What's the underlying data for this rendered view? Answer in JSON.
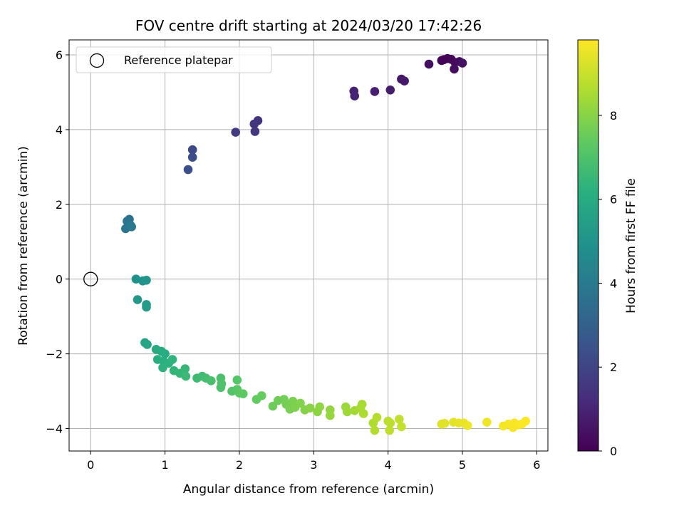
{
  "chart_data": {
    "type": "scatter",
    "title": "FOV centre drift starting at 2024/03/20 17:42:26",
    "xlabel": "Angular distance from reference (arcmin)",
    "ylabel": "Rotation from reference (arcmin)",
    "xlim": [
      -0.29,
      6.15
    ],
    "ylim": [
      -4.6,
      6.4
    ],
    "xticks": [
      0,
      1,
      2,
      3,
      4,
      5,
      6
    ],
    "yticks": [
      -4,
      -2,
      0,
      2,
      4,
      6
    ],
    "xtick_labels": [
      "0",
      "1",
      "2",
      "3",
      "4",
      "5",
      "6"
    ],
    "ytick_labels": [
      "−4",
      "−2",
      "0",
      "2",
      "4",
      "6"
    ],
    "grid": true,
    "legend": {
      "position": "top-left",
      "entries": [
        "Reference platepar"
      ]
    },
    "reference_point": {
      "x": 0,
      "y": 0,
      "marker": "open-circle"
    },
    "colorbar": {
      "label": "Hours from first FF file",
      "range": [
        0,
        9.8
      ],
      "ticks": [
        0,
        2,
        4,
        6,
        8
      ],
      "tick_labels": [
        "0",
        "2",
        "4",
        "6",
        "8"
      ],
      "colormap": "viridis"
    },
    "points": [
      {
        "x": 4.8,
        "y": 5.9,
        "c": 0.1
      },
      {
        "x": 4.85,
        "y": 5.88,
        "c": 0.15
      },
      {
        "x": 4.72,
        "y": 5.85,
        "c": 0.2
      },
      {
        "x": 4.9,
        "y": 5.8,
        "c": 0.25
      },
      {
        "x": 4.96,
        "y": 5.82,
        "c": 0.3
      },
      {
        "x": 4.75,
        "y": 5.87,
        "c": 0.05
      },
      {
        "x": 4.55,
        "y": 5.75,
        "c": 0.35
      },
      {
        "x": 4.89,
        "y": 5.62,
        "c": 0.4
      },
      {
        "x": 5.0,
        "y": 5.78,
        "c": 0.45
      },
      {
        "x": 4.18,
        "y": 5.35,
        "c": 0.6
      },
      {
        "x": 4.22,
        "y": 5.3,
        "c": 0.65
      },
      {
        "x": 4.03,
        "y": 5.06,
        "c": 0.75
      },
      {
        "x": 3.82,
        "y": 5.02,
        "c": 0.85
      },
      {
        "x": 3.54,
        "y": 5.03,
        "c": 0.95
      },
      {
        "x": 3.55,
        "y": 4.9,
        "c": 1.0
      },
      {
        "x": 2.25,
        "y": 4.24,
        "c": 1.4
      },
      {
        "x": 2.2,
        "y": 4.15,
        "c": 1.5
      },
      {
        "x": 2.21,
        "y": 3.95,
        "c": 1.55
      },
      {
        "x": 1.95,
        "y": 3.93,
        "c": 1.7
      },
      {
        "x": 1.37,
        "y": 3.46,
        "c": 2.2
      },
      {
        "x": 1.37,
        "y": 3.26,
        "c": 2.3
      },
      {
        "x": 1.31,
        "y": 2.93,
        "c": 2.4
      },
      {
        "x": 0.52,
        "y": 1.6,
        "c": 3.6
      },
      {
        "x": 0.49,
        "y": 1.55,
        "c": 3.7
      },
      {
        "x": 0.47,
        "y": 1.35,
        "c": 3.8
      },
      {
        "x": 0.54,
        "y": 1.43,
        "c": 3.9
      },
      {
        "x": 0.55,
        "y": 1.4,
        "c": 3.95
      },
      {
        "x": 0.61,
        "y": 0.0,
        "c": 4.9
      },
      {
        "x": 0.7,
        "y": -0.05,
        "c": 5.0
      },
      {
        "x": 0.75,
        "y": -0.03,
        "c": 5.05
      },
      {
        "x": 0.63,
        "y": -0.55,
        "c": 5.2
      },
      {
        "x": 0.75,
        "y": -0.68,
        "c": 5.3
      },
      {
        "x": 0.75,
        "y": -0.75,
        "c": 5.35
      },
      {
        "x": 0.73,
        "y": -1.7,
        "c": 5.7
      },
      {
        "x": 0.76,
        "y": -1.75,
        "c": 5.75
      },
      {
        "x": 0.88,
        "y": -1.88,
        "c": 5.9
      },
      {
        "x": 0.95,
        "y": -1.93,
        "c": 6.0
      },
      {
        "x": 1.0,
        "y": -2.0,
        "c": 6.05
      },
      {
        "x": 0.9,
        "y": -2.15,
        "c": 6.1
      },
      {
        "x": 0.98,
        "y": -2.2,
        "c": 6.15
      },
      {
        "x": 1.05,
        "y": -2.25,
        "c": 6.2
      },
      {
        "x": 0.97,
        "y": -2.37,
        "c": 6.25
      },
      {
        "x": 1.1,
        "y": -2.15,
        "c": 6.3
      },
      {
        "x": 1.12,
        "y": -2.45,
        "c": 6.4
      },
      {
        "x": 1.2,
        "y": -2.52,
        "c": 6.45
      },
      {
        "x": 1.27,
        "y": -2.4,
        "c": 6.5
      },
      {
        "x": 1.28,
        "y": -2.6,
        "c": 6.55
      },
      {
        "x": 1.43,
        "y": -2.65,
        "c": 6.65
      },
      {
        "x": 1.5,
        "y": -2.6,
        "c": 6.7
      },
      {
        "x": 1.55,
        "y": -2.65,
        "c": 6.75
      },
      {
        "x": 1.62,
        "y": -2.72,
        "c": 6.85
      },
      {
        "x": 1.75,
        "y": -2.65,
        "c": 6.9
      },
      {
        "x": 1.75,
        "y": -2.9,
        "c": 6.95
      },
      {
        "x": 1.76,
        "y": -2.8,
        "c": 7.0
      },
      {
        "x": 1.9,
        "y": -3.0,
        "c": 7.1
      },
      {
        "x": 1.97,
        "y": -2.7,
        "c": 7.15
      },
      {
        "x": 1.97,
        "y": -2.95,
        "c": 7.2
      },
      {
        "x": 2.0,
        "y": -3.05,
        "c": 7.25
      },
      {
        "x": 2.05,
        "y": -3.07,
        "c": 7.3
      },
      {
        "x": 2.23,
        "y": -3.22,
        "c": 7.4
      },
      {
        "x": 2.3,
        "y": -3.12,
        "c": 7.45
      },
      {
        "x": 2.45,
        "y": -3.4,
        "c": 7.55
      },
      {
        "x": 2.52,
        "y": -3.25,
        "c": 7.6
      },
      {
        "x": 2.6,
        "y": -3.22,
        "c": 7.65
      },
      {
        "x": 2.63,
        "y": -3.35,
        "c": 7.7
      },
      {
        "x": 2.68,
        "y": -3.48,
        "c": 7.75
      },
      {
        "x": 2.72,
        "y": -3.27,
        "c": 7.8
      },
      {
        "x": 2.75,
        "y": -3.43,
        "c": 7.85
      },
      {
        "x": 2.82,
        "y": -3.32,
        "c": 7.9
      },
      {
        "x": 2.88,
        "y": -3.5,
        "c": 7.95
      },
      {
        "x": 2.95,
        "y": -3.45,
        "c": 8.0
      },
      {
        "x": 3.05,
        "y": -3.55,
        "c": 8.05
      },
      {
        "x": 3.08,
        "y": -3.42,
        "c": 8.1
      },
      {
        "x": 3.22,
        "y": -3.5,
        "c": 8.15
      },
      {
        "x": 3.22,
        "y": -3.65,
        "c": 8.2
      },
      {
        "x": 3.43,
        "y": -3.42,
        "c": 8.3
      },
      {
        "x": 3.45,
        "y": -3.55,
        "c": 8.35
      },
      {
        "x": 3.55,
        "y": -3.52,
        "c": 8.4
      },
      {
        "x": 3.65,
        "y": -3.35,
        "c": 8.45
      },
      {
        "x": 3.63,
        "y": -3.45,
        "c": 8.5
      },
      {
        "x": 3.67,
        "y": -3.6,
        "c": 8.55
      },
      {
        "x": 3.8,
        "y": -3.85,
        "c": 8.6
      },
      {
        "x": 3.82,
        "y": -4.05,
        "c": 8.65
      },
      {
        "x": 3.85,
        "y": -3.7,
        "c": 8.7
      },
      {
        "x": 4.0,
        "y": -3.8,
        "c": 8.75
      },
      {
        "x": 4.03,
        "y": -3.85,
        "c": 8.8
      },
      {
        "x": 4.02,
        "y": -4.05,
        "c": 8.85
      },
      {
        "x": 4.15,
        "y": -3.75,
        "c": 8.9
      },
      {
        "x": 4.18,
        "y": -3.95,
        "c": 8.95
      },
      {
        "x": 4.72,
        "y": -3.88,
        "c": 9.3
      },
      {
        "x": 4.76,
        "y": -3.86,
        "c": 9.35
      },
      {
        "x": 4.88,
        "y": -3.83,
        "c": 9.4
      },
      {
        "x": 4.95,
        "y": -3.85,
        "c": 9.45
      },
      {
        "x": 5.02,
        "y": -3.85,
        "c": 9.5
      },
      {
        "x": 5.07,
        "y": -3.92,
        "c": 9.55
      },
      {
        "x": 5.33,
        "y": -3.83,
        "c": 9.6
      },
      {
        "x": 5.55,
        "y": -3.93,
        "c": 9.65
      },
      {
        "x": 5.62,
        "y": -3.88,
        "c": 9.68
      },
      {
        "x": 5.68,
        "y": -3.97,
        "c": 9.7
      },
      {
        "x": 5.7,
        "y": -3.85,
        "c": 9.72
      },
      {
        "x": 5.75,
        "y": -3.9,
        "c": 9.74
      },
      {
        "x": 5.8,
        "y": -3.88,
        "c": 9.76
      },
      {
        "x": 5.85,
        "y": -3.8,
        "c": 9.78
      }
    ]
  }
}
